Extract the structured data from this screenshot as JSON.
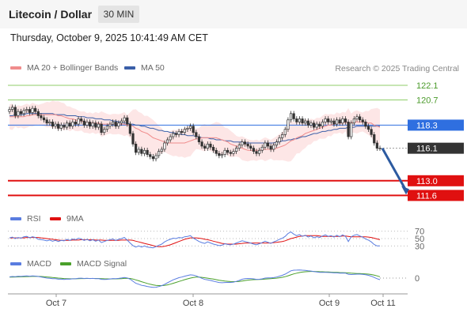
{
  "header": {
    "title": "Litecoin / Dollar",
    "timeframe": "30 MIN"
  },
  "datetime": "Thursday, October 9, 2025 10:41:49 AM CET",
  "legend": {
    "ma20": "MA 20 + Bollinger Bands",
    "ma50": "MA 50",
    "credit": "Research © 2025 Trading Central",
    "rsi": "RSI",
    "rsi_ma": "9MA",
    "macd": "MACD",
    "macd_signal": "MACD Signal"
  },
  "colors": {
    "ma20": "#f08c8c",
    "ma50": "#3a5fa8",
    "bollinger_fill": "#fde3e3",
    "resistance": "#8fce6a",
    "pivot": "#2f6fe0",
    "current": "#333333",
    "support": "#e01010",
    "arrow": "#2c5aa0",
    "rsi": "#5a7de0",
    "rsi_ma": "#e01010",
    "macd": "#5a7de0",
    "macd_signal": "#4aa02a"
  },
  "chart_data": {
    "type": "candlestick",
    "ylim": [
      110.5,
      123.0
    ],
    "x_ticks": [
      "Oct 7",
      "Oct 8",
      "Oct 9",
      "Oct 11"
    ],
    "levels": [
      {
        "value": 122.1,
        "label": "122.1",
        "kind": "resistance"
      },
      {
        "value": 120.7,
        "label": "120.7",
        "kind": "resistance"
      },
      {
        "value": 118.3,
        "label": "118.3",
        "kind": "pivot"
      },
      {
        "value": 116.1,
        "label": "116.1",
        "kind": "current"
      },
      {
        "value": 113.0,
        "label": "113.0",
        "kind": "support"
      },
      {
        "value": 111.6,
        "label": "111.6",
        "kind": "support"
      }
    ],
    "close": [
      119.8,
      120.0,
      119.2,
      119.6,
      119.4,
      119.7,
      119.8,
      119.5,
      119.9,
      119.6,
      119.2,
      119.0,
      118.8,
      118.5,
      118.6,
      118.2,
      118.4,
      118.0,
      118.3,
      118.1,
      118.5,
      118.2,
      118.6,
      118.4,
      118.9,
      118.7,
      118.3,
      118.6,
      118.2,
      118.5,
      118.1,
      118.4,
      117.6,
      117.9,
      118.2,
      118.4,
      118.6,
      118.2,
      118.5,
      118.7,
      119.0,
      118.4,
      117.5,
      116.5,
      115.7,
      116.0,
      115.6,
      115.9,
      115.5,
      115.3,
      115.1,
      115.4,
      115.8,
      116.0,
      116.6,
      116.9,
      117.2,
      117.5,
      117.4,
      117.7,
      117.6,
      117.9,
      118.0,
      118.2,
      117.6,
      117.2,
      116.7,
      116.3,
      116.1,
      116.5,
      116.2,
      115.9,
      115.6,
      115.4,
      115.5,
      115.9,
      115.7,
      115.6,
      115.8,
      116.1,
      116.4,
      116.7,
      116.5,
      116.3,
      116.1,
      115.8,
      115.6,
      115.9,
      116.2,
      116.6,
      116.3,
      116.0,
      116.4,
      116.7,
      117.1,
      117.4,
      117.9,
      118.8,
      119.4,
      118.9,
      118.6,
      118.9,
      118.5,
      118.7,
      118.3,
      118.5,
      118.1,
      118.4,
      118.2,
      118.6,
      118.9,
      118.6,
      118.7,
      118.4,
      118.8,
      118.5,
      118.9,
      118.6,
      117.2,
      118.5,
      118.9,
      119.1,
      118.8,
      118.6,
      118.2,
      117.9,
      117.4,
      116.6,
      116.1,
      116.1
    ],
    "ma20": [
      119.1,
      119.1,
      119.1,
      119.1,
      119.1,
      119.1,
      119.2,
      119.2,
      119.3,
      119.3,
      119.3,
      119.3,
      119.3,
      119.3,
      119.3,
      119.3,
      119.3,
      119.2,
      119.2,
      119.1,
      119.0,
      118.9,
      118.9,
      118.8,
      118.7,
      118.7,
      118.6,
      118.5,
      118.5,
      118.5,
      118.5,
      118.5,
      118.4,
      118.4,
      118.4,
      118.4,
      118.4,
      118.4,
      118.4,
      118.4,
      118.4,
      118.3,
      118.3,
      118.2,
      118.0,
      117.9,
      117.7,
      117.6,
      117.5,
      117.3,
      117.1,
      117.0,
      116.9,
      116.8,
      116.7,
      116.6,
      116.6,
      116.6,
      116.6,
      116.6,
      116.6,
      116.6,
      116.7,
      116.8,
      116.9,
      117.0,
      117.0,
      117.1,
      117.1,
      117.1,
      117.1,
      117.1,
      117.1,
      117.0,
      116.9,
      116.8,
      116.7,
      116.5,
      116.4,
      116.3,
      116.2,
      116.1,
      116.0,
      115.9,
      115.9,
      115.9,
      115.9,
      115.9,
      116.0,
      116.0,
      116.0,
      116.0,
      116.0,
      116.1,
      116.2,
      116.3,
      116.4,
      116.6,
      116.8,
      116.9,
      117.1,
      117.2,
      117.3,
      117.5,
      117.6,
      117.7,
      117.8,
      117.9,
      118.0,
      118.1,
      118.2,
      118.3,
      118.3,
      118.4,
      118.5,
      118.5,
      118.5,
      118.6,
      118.5,
      118.5,
      118.6,
      118.6,
      118.6,
      118.6,
      118.6,
      118.5,
      118.5,
      118.3,
      118.2,
      118.1
    ],
    "ma50": [
      119.2,
      119.2,
      119.3,
      119.3,
      119.3,
      119.3,
      119.4,
      119.4,
      119.4,
      119.4,
      119.4,
      119.4,
      119.4,
      119.4,
      119.4,
      119.4,
      119.3,
      119.3,
      119.3,
      119.3,
      119.2,
      119.2,
      119.2,
      119.2,
      119.1,
      119.1,
      119.1,
      119.0,
      119.0,
      119.0,
      118.9,
      118.9,
      118.9,
      118.8,
      118.8,
      118.8,
      118.7,
      118.7,
      118.6,
      118.6,
      118.5,
      118.5,
      118.4,
      118.4,
      118.3,
      118.3,
      118.2,
      118.2,
      118.1,
      118.0,
      118.0,
      117.9,
      117.8,
      117.8,
      117.7,
      117.7,
      117.6,
      117.6,
      117.5,
      117.5,
      117.4,
      117.4,
      117.3,
      117.3,
      117.3,
      117.2,
      117.2,
      117.1,
      117.1,
      117.1,
      117.0,
      117.0,
      116.9,
      116.9,
      116.9,
      116.8,
      116.8,
      116.8,
      116.7,
      116.7,
      116.7,
      116.7,
      116.6,
      116.6,
      116.6,
      116.6,
      116.6,
      116.6,
      116.6,
      116.6,
      116.6,
      116.6,
      116.6,
      116.7,
      116.7,
      116.8,
      116.8,
      116.9,
      116.9,
      117.0,
      117.0,
      117.1,
      117.2,
      117.2,
      117.3,
      117.4,
      117.5,
      117.5,
      117.6,
      117.7,
      117.7,
      117.8,
      117.8,
      117.9,
      117.9,
      118.0,
      118.0,
      118.0,
      118.1,
      118.1,
      118.1,
      118.2,
      118.2,
      118.2,
      118.2,
      118.2,
      118.2,
      118.2,
      118.2,
      118.2
    ],
    "rsi": {
      "ticks": [
        70,
        50,
        30
      ],
      "ylim": [
        20,
        80
      ],
      "rsi": [
        52,
        54,
        50,
        53,
        51,
        55,
        56,
        52,
        55,
        53,
        48,
        47,
        46,
        44,
        46,
        43,
        45,
        42,
        45,
        44,
        48,
        45,
        49,
        47,
        51,
        49,
        45,
        48,
        44,
        47,
        43,
        46,
        39,
        42,
        45,
        47,
        49,
        45,
        48,
        50,
        53,
        46,
        38,
        31,
        27,
        30,
        27,
        30,
        27,
        26,
        25,
        28,
        32,
        35,
        41,
        45,
        48,
        51,
        50,
        53,
        52,
        55,
        56,
        58,
        51,
        47,
        42,
        39,
        37,
        41,
        38,
        35,
        33,
        31,
        32,
        36,
        34,
        33,
        35,
        38,
        41,
        44,
        42,
        40,
        38,
        35,
        33,
        36,
        39,
        43,
        40,
        37,
        41,
        44,
        48,
        51,
        56,
        64,
        68,
        62,
        58,
        61,
        56,
        59,
        54,
        57,
        52,
        55,
        53,
        57,
        60,
        56,
        58,
        54,
        59,
        55,
        60,
        56,
        42,
        55,
        59,
        61,
        57,
        54,
        49,
        46,
        41,
        34,
        30,
        30
      ],
      "ma": [
        52,
        52,
        52,
        52,
        52,
        52,
        53,
        53,
        53,
        53,
        53,
        52,
        51,
        50,
        49,
        48,
        47,
        46,
        45,
        45,
        45,
        45,
        46,
        46,
        46,
        47,
        47,
        47,
        47,
        47,
        46,
        46,
        46,
        45,
        45,
        45,
        45,
        45,
        45,
        46,
        46,
        46,
        46,
        45,
        43,
        41,
        39,
        37,
        35,
        33,
        31,
        29,
        28,
        28,
        29,
        31,
        33,
        36,
        39,
        42,
        45,
        48,
        50,
        52,
        52,
        52,
        51,
        50,
        48,
        47,
        45,
        43,
        41,
        39,
        37,
        36,
        35,
        35,
        35,
        35,
        36,
        37,
        38,
        38,
        38,
        38,
        38,
        38,
        38,
        38,
        38,
        38,
        39,
        40,
        41,
        42,
        44,
        47,
        50,
        52,
        54,
        56,
        57,
        58,
        58,
        58,
        58,
        58,
        57,
        56,
        56,
        56,
        56,
        56,
        56,
        56,
        57,
        57,
        56,
        55,
        55,
        55,
        55,
        55,
        55,
        54,
        53,
        51,
        49,
        47
      ]
    },
    "macd": {
      "ticks": [
        0
      ],
      "ylim": [
        -1.6,
        1.2
      ],
      "macd": [
        0.15,
        0.2,
        0.18,
        0.22,
        0.21,
        0.25,
        0.27,
        0.24,
        0.27,
        0.25,
        0.2,
        0.14,
        0.08,
        0.0,
        -0.02,
        -0.08,
        -0.08,
        -0.14,
        -0.14,
        -0.17,
        -0.13,
        -0.14,
        -0.09,
        -0.09,
        -0.02,
        -0.01,
        -0.05,
        -0.02,
        -0.06,
        -0.04,
        -0.08,
        -0.06,
        -0.16,
        -0.18,
        -0.16,
        -0.11,
        -0.06,
        -0.08,
        -0.04,
        0.01,
        0.08,
        0.02,
        -0.14,
        -0.4,
        -0.66,
        -0.78,
        -0.92,
        -0.98,
        -1.06,
        -1.12,
        -1.17,
        -1.16,
        -1.07,
        -0.96,
        -0.79,
        -0.6,
        -0.41,
        -0.22,
        -0.09,
        0.05,
        0.13,
        0.24,
        0.32,
        0.41,
        0.38,
        0.28,
        0.13,
        -0.03,
        -0.17,
        -0.23,
        -0.3,
        -0.39,
        -0.48,
        -0.56,
        -0.59,
        -0.56,
        -0.55,
        -0.55,
        -0.51,
        -0.42,
        -0.3,
        -0.15,
        -0.08,
        -0.05,
        -0.06,
        -0.1,
        -0.16,
        -0.15,
        -0.1,
        0.0,
        0.03,
        0.02,
        0.06,
        0.13,
        0.24,
        0.35,
        0.5,
        0.71,
        0.92,
        1.0,
        1.01,
        1.03,
        1.0,
        0.98,
        0.93,
        0.89,
        0.82,
        0.78,
        0.73,
        0.72,
        0.73,
        0.71,
        0.7,
        0.66,
        0.66,
        0.63,
        0.64,
        0.63,
        0.47,
        0.45,
        0.47,
        0.5,
        0.5,
        0.48,
        0.42,
        0.35,
        0.24,
        0.08,
        -0.08,
        -0.2
      ],
      "signal": [
        0.12,
        0.13,
        0.14,
        0.15,
        0.16,
        0.18,
        0.19,
        0.2,
        0.21,
        0.22,
        0.21,
        0.2,
        0.17,
        0.14,
        0.11,
        0.07,
        0.04,
        0.0,
        -0.03,
        -0.06,
        -0.07,
        -0.09,
        -0.09,
        -0.09,
        -0.08,
        -0.06,
        -0.06,
        -0.05,
        -0.05,
        -0.05,
        -0.05,
        -0.05,
        -0.07,
        -0.09,
        -0.1,
        -0.11,
        -0.1,
        -0.1,
        -0.09,
        -0.07,
        -0.04,
        -0.03,
        -0.05,
        -0.12,
        -0.23,
        -0.34,
        -0.46,
        -0.57,
        -0.68,
        -0.78,
        -0.86,
        -0.92,
        -0.95,
        -0.95,
        -0.92,
        -0.86,
        -0.77,
        -0.66,
        -0.55,
        -0.43,
        -0.32,
        -0.2,
        -0.1,
        0.0,
        0.08,
        0.12,
        0.12,
        0.09,
        0.04,
        -0.01,
        -0.07,
        -0.13,
        -0.2,
        -0.27,
        -0.33,
        -0.38,
        -0.41,
        -0.44,
        -0.45,
        -0.45,
        -0.42,
        -0.37,
        -0.31,
        -0.26,
        -0.22,
        -0.2,
        -0.19,
        -0.18,
        -0.16,
        -0.13,
        -0.1,
        -0.07,
        -0.04,
        -0.01,
        0.04,
        0.1,
        0.18,
        0.29,
        0.41,
        0.53,
        0.62,
        0.7,
        0.76,
        0.8,
        0.83,
        0.84,
        0.84,
        0.83,
        0.81,
        0.8,
        0.78,
        0.77,
        0.75,
        0.73,
        0.72,
        0.7,
        0.69,
        0.67,
        0.65,
        0.62,
        0.6,
        0.58,
        0.57,
        0.55,
        0.53,
        0.5,
        0.45,
        0.37,
        0.28,
        0.17
      ]
    }
  }
}
